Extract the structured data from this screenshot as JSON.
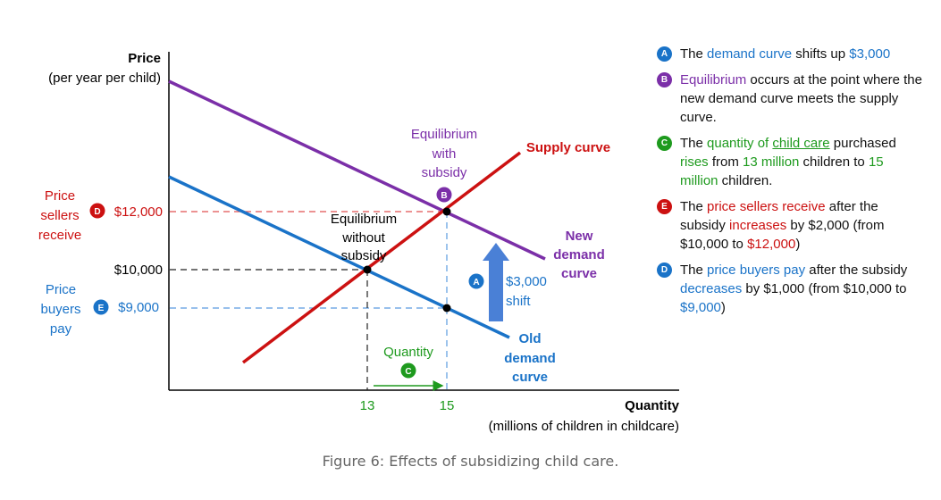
{
  "axes": {
    "y_title": "Price",
    "y_subtitle": "(per year per child)",
    "x_title": "Quantity",
    "x_subtitle": "(millions of children in childcare)",
    "x_tick_13": "13",
    "x_tick_15": "15"
  },
  "price_labels": {
    "p12000": "$12,000",
    "p10000": "$10,000",
    "p9000": "$9,000",
    "sellers_line1": "Price",
    "sellers_line2": "sellers",
    "sellers_line3": "receive",
    "buyers_line1": "Price",
    "buyers_line2": "buyers",
    "buyers_line3": "pay"
  },
  "curves": {
    "supply": "Supply curve",
    "new_demand_1": "New",
    "new_demand_2": "demand",
    "new_demand_3": "curve",
    "old_demand_1": "Old",
    "old_demand_2": "demand",
    "old_demand_3": "curve"
  },
  "annotations": {
    "eq_sub_1": "Equilibrium",
    "eq_sub_2": "with",
    "eq_sub_3": "subsidy",
    "eq_nosub_1": "Equilibrium",
    "eq_nosub_2": "without",
    "eq_nosub_3": "subsidy",
    "shift_1": "$3,000",
    "shift_2": "shift",
    "quantity": "Quantity"
  },
  "badges": {
    "A": "A",
    "B": "B",
    "C": "C",
    "D": "D",
    "E": "E"
  },
  "legend": [
    {
      "badge": "A",
      "color": "#1a73c8",
      "parts": [
        "The ",
        "demand curve",
        " shifts up  ",
        "$3,000"
      ]
    },
    {
      "badge": "B",
      "color": "#7b2fa8",
      "parts": [
        "Equilibrium",
        " occurs at the point where the new demand curve meets the supply curve."
      ]
    },
    {
      "badge": "C",
      "color": "#1e9a1e",
      "parts": [
        "The ",
        "quantity of ",
        "child care",
        " purchased ",
        "rises",
        " from ",
        "13 million",
        " children to ",
        "15 million",
        " children."
      ]
    },
    {
      "badge": "E",
      "color": "#cc1111",
      "parts": [
        "The ",
        "price sellers receive",
        " after the subsidy ",
        "increases",
        " by $2,000 (from $10,000 to ",
        "$12,000",
        ")"
      ]
    },
    {
      "badge": "D",
      "color": "#1a73c8",
      "parts": [
        "The ",
        "price buyers pay",
        " after the subsidy ",
        "decreases",
        " by $1,000 (from $10,000 to ",
        "$9,000",
        ")"
      ]
    }
  ],
  "colors": {
    "supply": "#cc1111",
    "new_demand": "#7b2fa8",
    "old_demand": "#1a73c8",
    "quantity": "#1e9a1e"
  },
  "caption": "Figure 6: Effects of subsidizing child care."
}
